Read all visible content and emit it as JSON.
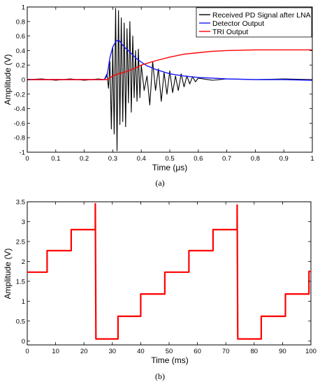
{
  "figure": {
    "panel_a_label": "(a)",
    "panel_b_label": "(b)"
  },
  "chart_data": [
    {
      "type": "line",
      "panel": "(a)",
      "xlabel": "Time (μs)",
      "ylabel": "Amplitude (V)",
      "xlim": [
        0,
        1
      ],
      "ylim": [
        -1,
        1
      ],
      "x_ticks": [
        "0",
        "0.1",
        "0.2",
        "0.3",
        "0.4",
        "0.5",
        "0.6",
        "0.7",
        "0.8",
        "0.9",
        "1"
      ],
      "y_ticks": [
        "-1",
        "-0.8",
        "-0.6",
        "-0.4",
        "-0.2",
        "0",
        "0.2",
        "0.4",
        "0.6",
        "0.8",
        "1"
      ],
      "grid": false,
      "legend_position": "top-right",
      "series": [
        {
          "name": "Received PD Signal after LNA",
          "color": "#000000",
          "points": [
            [
              0,
              0
            ],
            [
              0.05,
              0.01
            ],
            [
              0.1,
              -0.01
            ],
            [
              0.15,
              0.01
            ],
            [
              0.2,
              -0.01
            ],
            [
              0.25,
              0.01
            ],
            [
              0.27,
              0
            ],
            [
              0.28,
              0.08
            ],
            [
              0.285,
              -0.12
            ],
            [
              0.29,
              0.25
            ],
            [
              0.295,
              -0.68
            ],
            [
              0.3,
              0.45
            ],
            [
              0.305,
              -0.75
            ],
            [
              0.31,
              0.98
            ],
            [
              0.315,
              -0.98
            ],
            [
              0.32,
              0.95
            ],
            [
              0.325,
              -0.62
            ],
            [
              0.33,
              0.85
            ],
            [
              0.335,
              -0.58
            ],
            [
              0.34,
              0.78
            ],
            [
              0.345,
              -0.65
            ],
            [
              0.35,
              0.7
            ],
            [
              0.355,
              -0.32
            ],
            [
              0.36,
              0.8
            ],
            [
              0.365,
              -0.45
            ],
            [
              0.37,
              0.6
            ],
            [
              0.375,
              -0.25
            ],
            [
              0.38,
              0.4
            ],
            [
              0.385,
              -0.3
            ],
            [
              0.39,
              0.42
            ],
            [
              0.395,
              -0.25
            ],
            [
              0.4,
              0.2
            ],
            [
              0.41,
              -0.15
            ],
            [
              0.42,
              0.05
            ],
            [
              0.43,
              -0.35
            ],
            [
              0.44,
              0.25
            ],
            [
              0.45,
              -0.15
            ],
            [
              0.46,
              0.15
            ],
            [
              0.47,
              -0.3
            ],
            [
              0.48,
              0.1
            ],
            [
              0.49,
              -0.2
            ],
            [
              0.5,
              0.12
            ],
            [
              0.51,
              -0.18
            ],
            [
              0.52,
              0.05
            ],
            [
              0.53,
              -0.15
            ],
            [
              0.54,
              0.08
            ],
            [
              0.55,
              -0.1
            ],
            [
              0.56,
              0.05
            ],
            [
              0.57,
              -0.06
            ],
            [
              0.58,
              0.04
            ],
            [
              0.59,
              -0.03
            ],
            [
              0.6,
              0.02
            ],
            [
              0.65,
              -0.01
            ],
            [
              0.7,
              0.01
            ],
            [
              0.8,
              0
            ],
            [
              0.9,
              0.01
            ],
            [
              1.0,
              0
            ]
          ]
        },
        {
          "name": "Detector Output",
          "color": "#1a1aff",
          "points": [
            [
              0,
              0
            ],
            [
              0.1,
              0
            ],
            [
              0.2,
              0
            ],
            [
              0.27,
              0
            ],
            [
              0.28,
              0.05
            ],
            [
              0.29,
              0.3
            ],
            [
              0.3,
              0.45
            ],
            [
              0.31,
              0.52
            ],
            [
              0.32,
              0.55
            ],
            [
              0.33,
              0.5
            ],
            [
              0.34,
              0.45
            ],
            [
              0.36,
              0.38
            ],
            [
              0.38,
              0.3
            ],
            [
              0.4,
              0.24
            ],
            [
              0.42,
              0.19
            ],
            [
              0.45,
              0.14
            ],
            [
              0.5,
              0.08
            ],
            [
              0.55,
              0.05
            ],
            [
              0.6,
              0.03
            ],
            [
              0.7,
              0.01
            ],
            [
              0.8,
              0
            ],
            [
              0.9,
              0
            ],
            [
              1.0,
              -0.01
            ]
          ]
        },
        {
          "name": "TRI Output",
          "color": "#ff0000",
          "points": [
            [
              0,
              0
            ],
            [
              0.1,
              0
            ],
            [
              0.2,
              0
            ],
            [
              0.28,
              0
            ],
            [
              0.3,
              0.05
            ],
            [
              0.32,
              0.08
            ],
            [
              0.34,
              0.1
            ],
            [
              0.36,
              0.13
            ],
            [
              0.38,
              0.16
            ],
            [
              0.4,
              0.2
            ],
            [
              0.45,
              0.26
            ],
            [
              0.5,
              0.31
            ],
            [
              0.55,
              0.35
            ],
            [
              0.6,
              0.37
            ],
            [
              0.65,
              0.39
            ],
            [
              0.7,
              0.4
            ],
            [
              0.8,
              0.41
            ],
            [
              0.9,
              0.41
            ],
            [
              1.0,
              0.41
            ]
          ]
        }
      ]
    },
    {
      "type": "line",
      "panel": "(b)",
      "xlabel": "Time (ms)",
      "ylabel": "Amplitude (V)",
      "xlim": [
        0,
        100
      ],
      "ylim": [
        -0.1,
        3.5
      ],
      "x_ticks": [
        "0",
        "10",
        "20",
        "30",
        "40",
        "50",
        "60",
        "70",
        "80",
        "90",
        "100"
      ],
      "y_ticks": [
        "0",
        "0.5",
        "1",
        "1.5",
        "2",
        "2.5",
        "3",
        "3.5"
      ],
      "grid": false,
      "series": [
        {
          "color": "#ff0000",
          "points": [
            [
              0,
              1.73
            ],
            [
              7,
              1.73
            ],
            [
              7,
              2.27
            ],
            [
              15.5,
              2.27
            ],
            [
              15.5,
              2.8
            ],
            [
              24,
              2.8
            ],
            [
              24,
              3.45
            ],
            [
              24.2,
              0.05
            ],
            [
              32,
              0.05
            ],
            [
              32,
              0.62
            ],
            [
              40,
              0.62
            ],
            [
              40,
              1.18
            ],
            [
              48.5,
              1.18
            ],
            [
              48.5,
              1.73
            ],
            [
              57,
              1.73
            ],
            [
              57,
              2.27
            ],
            [
              65.5,
              2.27
            ],
            [
              65.5,
              2.8
            ],
            [
              74,
              2.8
            ],
            [
              74,
              3.42
            ],
            [
              74.2,
              0.05
            ],
            [
              82.5,
              0.05
            ],
            [
              82.5,
              0.62
            ],
            [
              91,
              0.62
            ],
            [
              91,
              1.18
            ],
            [
              99.3,
              1.18
            ],
            [
              99.3,
              1.75
            ],
            [
              100,
              1.75
            ]
          ]
        }
      ]
    }
  ]
}
